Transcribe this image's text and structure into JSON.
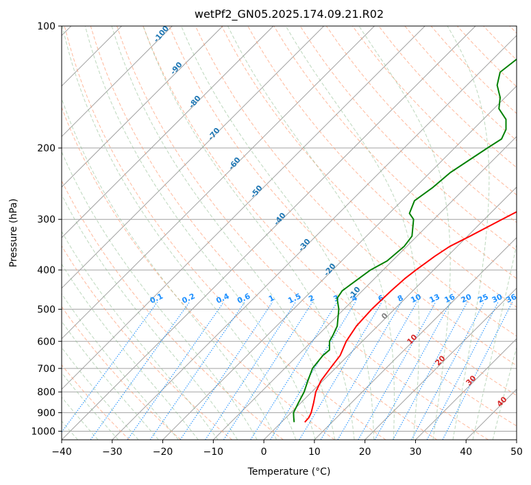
{
  "chart_data": {
    "type": "line",
    "title": "wetPf2_GN05.2025.174.09.21.R02",
    "xlabel": "Temperature (°C)",
    "ylabel": "Pressure (hPa)",
    "xlim": [
      -40,
      50
    ],
    "ylim": [
      1050,
      100
    ],
    "y_scale": "log",
    "x_ticks": [
      "−40",
      "−30",
      "−20",
      "−10",
      "0",
      "10",
      "20",
      "30",
      "40",
      "50"
    ],
    "y_ticks": [
      "100",
      "200",
      "300",
      "400",
      "500",
      "600",
      "700",
      "800",
      "900",
      "1000"
    ],
    "grid": true,
    "series": [
      {
        "color": "#ff0000",
        "pressure": [
          950,
          925,
          900,
          850,
          800,
          750,
          700,
          650,
          600,
          550,
          500,
          450,
          420,
          400,
          370,
          350,
          330,
          300,
          270,
          250,
          230,
          200,
          180,
          160,
          140,
          130,
          120,
          100
        ],
        "values": [
          4.6,
          4.5,
          4.0,
          2.5,
          0.8,
          -0.4,
          -1.0,
          -1.6,
          -3.2,
          -4.2,
          -4.5,
          -4.3,
          -4.0,
          -3.5,
          -2.5,
          -1.5,
          0.5,
          3.5,
          7.0,
          10.0,
          11.5,
          14.0,
          16.0,
          17.5,
          20.0,
          22.5,
          26.0,
          27.0
        ]
      },
      {
        "color": "#008000",
        "pressure": [
          950,
          925,
          900,
          850,
          800,
          750,
          700,
          650,
          630,
          600,
          580,
          550,
          500,
          470,
          450,
          400,
          380,
          350,
          330,
          300,
          290,
          270,
          250,
          230,
          200,
          190,
          180,
          170,
          160,
          150,
          140,
          130,
          100
        ],
        "values": [
          2.5,
          1.5,
          0.5,
          -0.5,
          -1.5,
          -3.0,
          -4.5,
          -5.0,
          -4.8,
          -6.5,
          -7.0,
          -8.0,
          -11.0,
          -13.5,
          -14.0,
          -12.5,
          -11.0,
          -10.5,
          -11.0,
          -14.0,
          -16.0,
          -17.5,
          -16.5,
          -16.0,
          -13.5,
          -12.5,
          -13.5,
          -15.5,
          -19.0,
          -21.0,
          -24.0,
          -26.0,
          -23.5
        ]
      }
    ],
    "dry_adiabat_labels": [
      "-100",
      "-90",
      "-80",
      "-70",
      "-60",
      "-50",
      "-40",
      "-30",
      "-20",
      "-10"
    ],
    "mixing_ratio_labels": [
      "0.1",
      "0.2",
      "0.4",
      "0.6",
      "1",
      "1.5",
      "2",
      "3",
      "4",
      "6",
      "8",
      "10",
      "13",
      "16",
      "20",
      "25",
      "30",
      "36"
    ],
    "moist_adiabat_labels": [
      "0",
      "10",
      "20",
      "30",
      "40"
    ],
    "colors": {
      "temperature": "#ff0000",
      "dewpoint": "#008000",
      "dry_adiabat": "#ffa07a",
      "moist_adiabat": "#8fbc8f",
      "mixing_ratio": "#1e90ff",
      "dry_adiabat_label": "#1f77b4",
      "moist_adiabat_label": "#d62728",
      "grid": "#a0a0a0"
    }
  }
}
